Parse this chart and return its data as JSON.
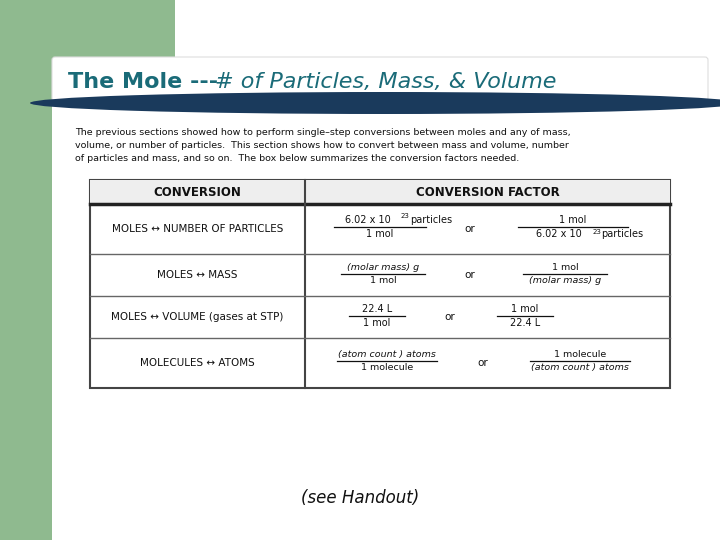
{
  "title_bold": "The Mole --- ",
  "title_italic": "# of Particles, Mass, & Volume",
  "title_color": "#1a6b78",
  "title_bar_color": "#1a3a5c",
  "green_color": "#8fba8f",
  "bg_color": "#ffffff",
  "paragraph_lines": [
    "The previous sections showed how to perform single–step conversions between moles and any of mass,",
    "volume, or number of particles.  This section shows how to convert between mass and volume, number",
    "of particles and mass, and so on.  The box below summarizes the conversion factors needed."
  ],
  "handout_text": "(see Handout)",
  "table_header_left": "CONVERSION",
  "table_header_right": "CONVERSION FACTOR"
}
